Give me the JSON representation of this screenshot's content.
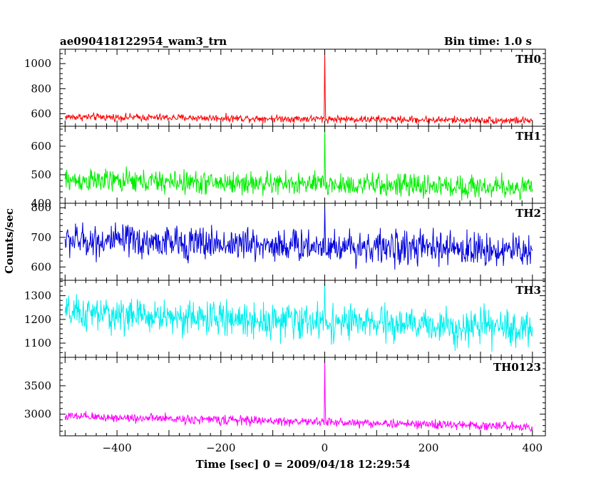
{
  "header": {
    "left_title": "ae090418122954_wam3_trn",
    "right_title": "Bin time: 1.0 s"
  },
  "ylabel": "Counts/sec",
  "xlabel": "Time [sec] 0 = 2009/04/18 12:29:54",
  "chart_data": {
    "type": "line",
    "x_range": [
      -500,
      400
    ],
    "xlim": [
      -510,
      425
    ],
    "x_ticks": [
      -400,
      -200,
      0,
      200,
      400
    ],
    "x_tick_labels": [
      "−400",
      "−200",
      "0",
      "200",
      "400"
    ],
    "panels": [
      {
        "name": "TH0",
        "color": "#ff0000",
        "ylim": [
          500,
          1115
        ],
        "y_ticks": [
          600,
          800,
          1000
        ],
        "y_tick_labels": [
          "600",
          "800",
          "1000"
        ],
        "baseline_start": 575,
        "baseline_end": 545,
        "noise": 18,
        "spike_peak": 1115
      },
      {
        "name": "TH1",
        "color": "#00ee00",
        "ylim": [
          400,
          670
        ],
        "y_ticks": [
          400,
          500,
          600
        ],
        "y_tick_labels": [
          "400",
          "500",
          "600"
        ],
        "baseline_start": 480,
        "baseline_end": 455,
        "noise": 25,
        "spike_peak": 670
      },
      {
        "name": "TH2",
        "color": "#0000dd",
        "ylim": [
          555,
          815
        ],
        "y_ticks": [
          600,
          700,
          800
        ],
        "y_tick_labels": [
          "600",
          "700",
          "800"
        ],
        "baseline_start": 690,
        "baseline_end": 655,
        "noise": 35,
        "spike_peak": 815
      },
      {
        "name": "TH3",
        "color": "#00eeee",
        "ylim": [
          1040,
          1365
        ],
        "y_ticks": [
          1100,
          1200,
          1300
        ],
        "y_tick_labels": [
          "1100",
          "1200",
          "1300"
        ],
        "baseline_start": 1225,
        "baseline_end": 1160,
        "noise": 45,
        "spike_peak": 1365
      },
      {
        "name": "TH0123",
        "color": "#ff00ff",
        "ylim": [
          2620,
          4000
        ],
        "y_ticks": [
          3000,
          3500
        ],
        "y_tick_labels": [
          "3000",
          "3500"
        ],
        "baseline_start": 2960,
        "baseline_end": 2780,
        "noise": 50,
        "spike_peak": 4000
      }
    ]
  }
}
